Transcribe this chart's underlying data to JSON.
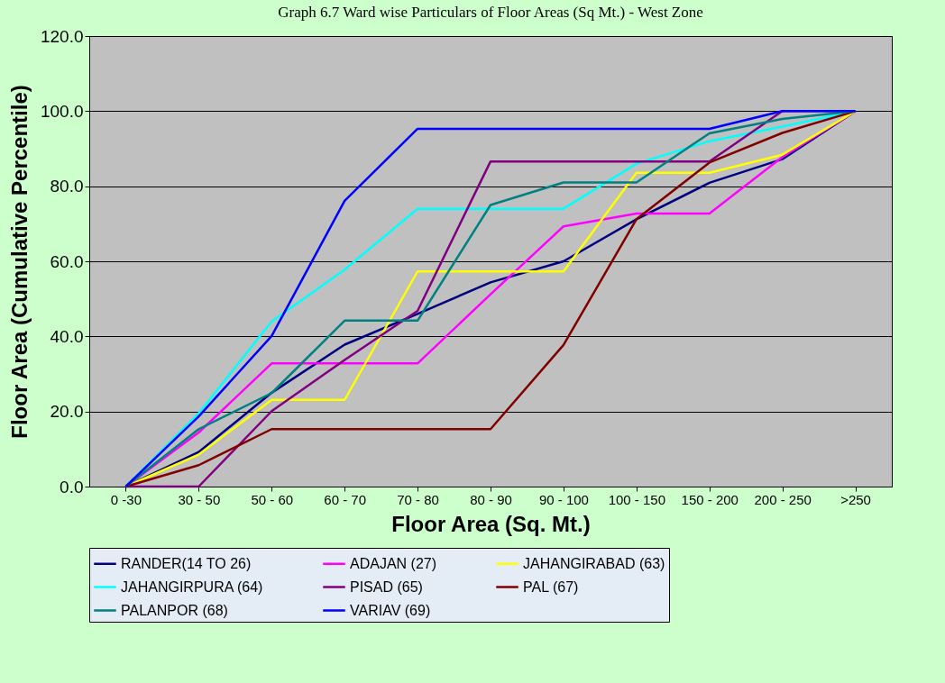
{
  "chart_data": {
    "type": "line",
    "title": "Graph 6.7 Ward wise Particulars of Floor Areas (Sq Mt.) - West Zone",
    "xlabel": "Floor Area (Sq. Mt.)",
    "ylabel": "Floor Area (Cumulative Percentile)",
    "categories": [
      "0 -30",
      "30 - 50",
      "50 - 60",
      "60 - 70",
      "70 - 80",
      "80 - 90",
      "90 - 100",
      "100 - 150",
      "150 - 200",
      "200 - 250",
      ">250"
    ],
    "series": [
      {
        "name": "RANDER(14 TO 26)",
        "color": "#000080",
        "values": [
          0,
          9.2,
          25.0,
          37.8,
          46.0,
          54.4,
          60.0,
          71.2,
          80.9,
          87.2,
          100
        ]
      },
      {
        "name": "ADAJAN (27)",
        "color": "#ff00ff",
        "values": [
          0,
          14.4,
          32.8,
          32.8,
          32.8,
          51.2,
          69.3,
          72.7,
          72.7,
          87.8,
          100
        ]
      },
      {
        "name": "JAHANGIRABAD (63)",
        "color": "#ffff00",
        "values": [
          0,
          8.5,
          23.1,
          23.1,
          57.3,
          57.3,
          57.3,
          83.6,
          83.6,
          88.4,
          100
        ]
      },
      {
        "name": "JAHANGIRPURA (64)",
        "color": "#00ffff",
        "values": [
          0,
          19.5,
          44.0,
          57.8,
          74.0,
          74.0,
          74.0,
          86.0,
          92.0,
          95.9,
          100
        ]
      },
      {
        "name": "PISAD (65)",
        "color": "#800080",
        "values": [
          0,
          0,
          20.1,
          33.7,
          46.8,
          86.6,
          86.6,
          86.6,
          86.6,
          100,
          100
        ]
      },
      {
        "name": "PAL (67)",
        "color": "#800000",
        "values": [
          0,
          5.7,
          15.3,
          15.3,
          15.3,
          15.3,
          37.7,
          71.2,
          86.3,
          94.2,
          100
        ]
      },
      {
        "name": "PALANPOR (68)",
        "color": "#008080",
        "values": [
          0,
          15.3,
          24.9,
          44.2,
          44.2,
          75.0,
          81.0,
          81.0,
          94.1,
          97.9,
          100
        ]
      },
      {
        "name": "VARIAV (69)",
        "color": "#0000ff",
        "values": [
          0,
          18.7,
          40.1,
          76.1,
          95.3,
          95.3,
          95.3,
          95.3,
          95.3,
          100,
          100
        ]
      }
    ],
    "ylim": [
      0,
      120
    ],
    "yticks": [
      {
        "value": 0,
        "label": "0.0"
      },
      {
        "value": 20,
        "label": "20.0"
      },
      {
        "value": 40,
        "label": "40.0"
      },
      {
        "value": 60,
        "label": "60.0"
      },
      {
        "value": 80,
        "label": "80.0"
      },
      {
        "value": 100,
        "label": "100.0"
      },
      {
        "value": 120,
        "label": "120.0"
      }
    ],
    "grid": "y",
    "legend": "bottom",
    "marker": "none",
    "line_style": "solid"
  }
}
